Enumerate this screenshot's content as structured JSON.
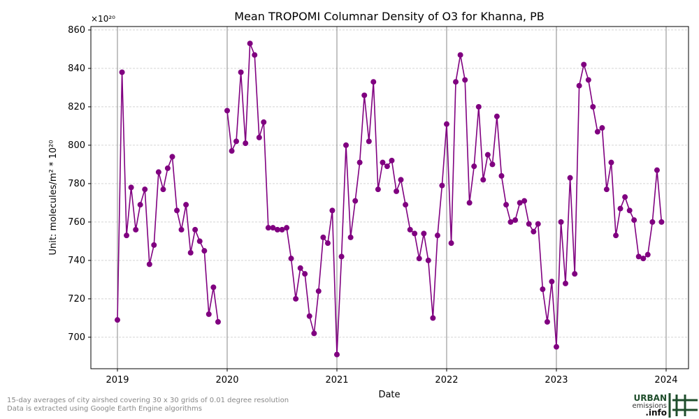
{
  "chart_data": {
    "type": "line",
    "title": "Mean TROPOMI Columnar Density of O3 for Khanna, PB",
    "x_label": "Date",
    "y_label": "Unit: molecules/m² * 10²⁰",
    "y_offset_label": "×10²⁰",
    "footnote": [
      "15-day averages of city airshed covering 30 x 30 grids of 0.01 degree resolution",
      "Data is extracted using Google Earth Engine algorithms"
    ],
    "logo": [
      "URBAN",
      "emissions",
      ".info"
    ],
    "x": [
      2019,
      2019.042,
      2019.083,
      2019.125,
      2019.167,
      2019.208,
      2019.25,
      2019.292,
      2019.333,
      2019.375,
      2019.417,
      2019.458,
      2019.5,
      2019.542,
      2019.583,
      2019.625,
      2019.667,
      2019.708,
      2019.75,
      2019.792,
      2019.833,
      2019.875,
      2019.917,
      2019.958,
      2020,
      2020.042,
      2020.083,
      2020.125,
      2020.167,
      2020.208,
      2020.25,
      2020.292,
      2020.333,
      2020.375,
      2020.417,
      2020.458,
      2020.5,
      2020.542,
      2020.583,
      2020.625,
      2020.667,
      2020.708,
      2020.75,
      2020.792,
      2020.833,
      2020.875,
      2020.917,
      2020.958,
      2021,
      2021.042,
      2021.083,
      2021.125,
      2021.167,
      2021.208,
      2021.25,
      2021.292,
      2021.333,
      2021.375,
      2021.417,
      2021.458,
      2021.5,
      2021.542,
      2021.583,
      2021.625,
      2021.667,
      2021.708,
      2021.75,
      2021.792,
      2021.833,
      2021.875,
      2021.917,
      2021.958,
      2022,
      2022.042,
      2022.083,
      2022.125,
      2022.167,
      2022.208,
      2022.25,
      2022.292,
      2022.333,
      2022.375,
      2022.417,
      2022.458,
      2022.5,
      2022.542,
      2022.583,
      2022.625,
      2022.667,
      2022.708,
      2022.75,
      2022.792,
      2022.833,
      2022.875,
      2022.917,
      2022.958,
      2023,
      2023.042,
      2023.083,
      2023.125,
      2023.167,
      2023.208,
      2023.25,
      2023.292,
      2023.333,
      2023.375,
      2023.417,
      2023.458,
      2023.5,
      2023.542,
      2023.583,
      2023.625,
      2023.667,
      2023.708,
      2023.75,
      2023.792,
      2023.833,
      2023.875,
      2023.917,
      2023.958
    ],
    "series": [
      {
        "name": "O3",
        "color": "#800080",
        "values": [
          709,
          838,
          753,
          778,
          756,
          769,
          777,
          738,
          748,
          786,
          777,
          788,
          794,
          766,
          756,
          769,
          744,
          756,
          750,
          745,
          712,
          726,
          708,
          null,
          818,
          797,
          802,
          838,
          801,
          853,
          847,
          804,
          812,
          757,
          757,
          756,
          756,
          757,
          741,
          720,
          736,
          733,
          711,
          702,
          724,
          752,
          749,
          766,
          691,
          742,
          800,
          752,
          771,
          791,
          826,
          802,
          833,
          777,
          791,
          789,
          792,
          776,
          782,
          769,
          756,
          754,
          741,
          754,
          740,
          710,
          753,
          779,
          811,
          749,
          833,
          847,
          834,
          770,
          789,
          820,
          782,
          795,
          790,
          815,
          784,
          769,
          760,
          761,
          770,
          771,
          759,
          755,
          759,
          725,
          708,
          729,
          695,
          760,
          728,
          783,
          733,
          831,
          842,
          834,
          820,
          807,
          809,
          777,
          791,
          753,
          767,
          773,
          766,
          761,
          742,
          741,
          743,
          760,
          787,
          760
        ]
      }
    ],
    "xlim": [
      2018.758,
      2024.204
    ],
    "xticks": [
      2019,
      2020,
      2021,
      2022,
      2023,
      2024
    ],
    "ylim": [
      683.6,
      861.8
    ],
    "yticks": [
      700,
      720,
      740,
      760,
      780,
      800,
      820,
      840,
      860
    ],
    "grid": true
  }
}
